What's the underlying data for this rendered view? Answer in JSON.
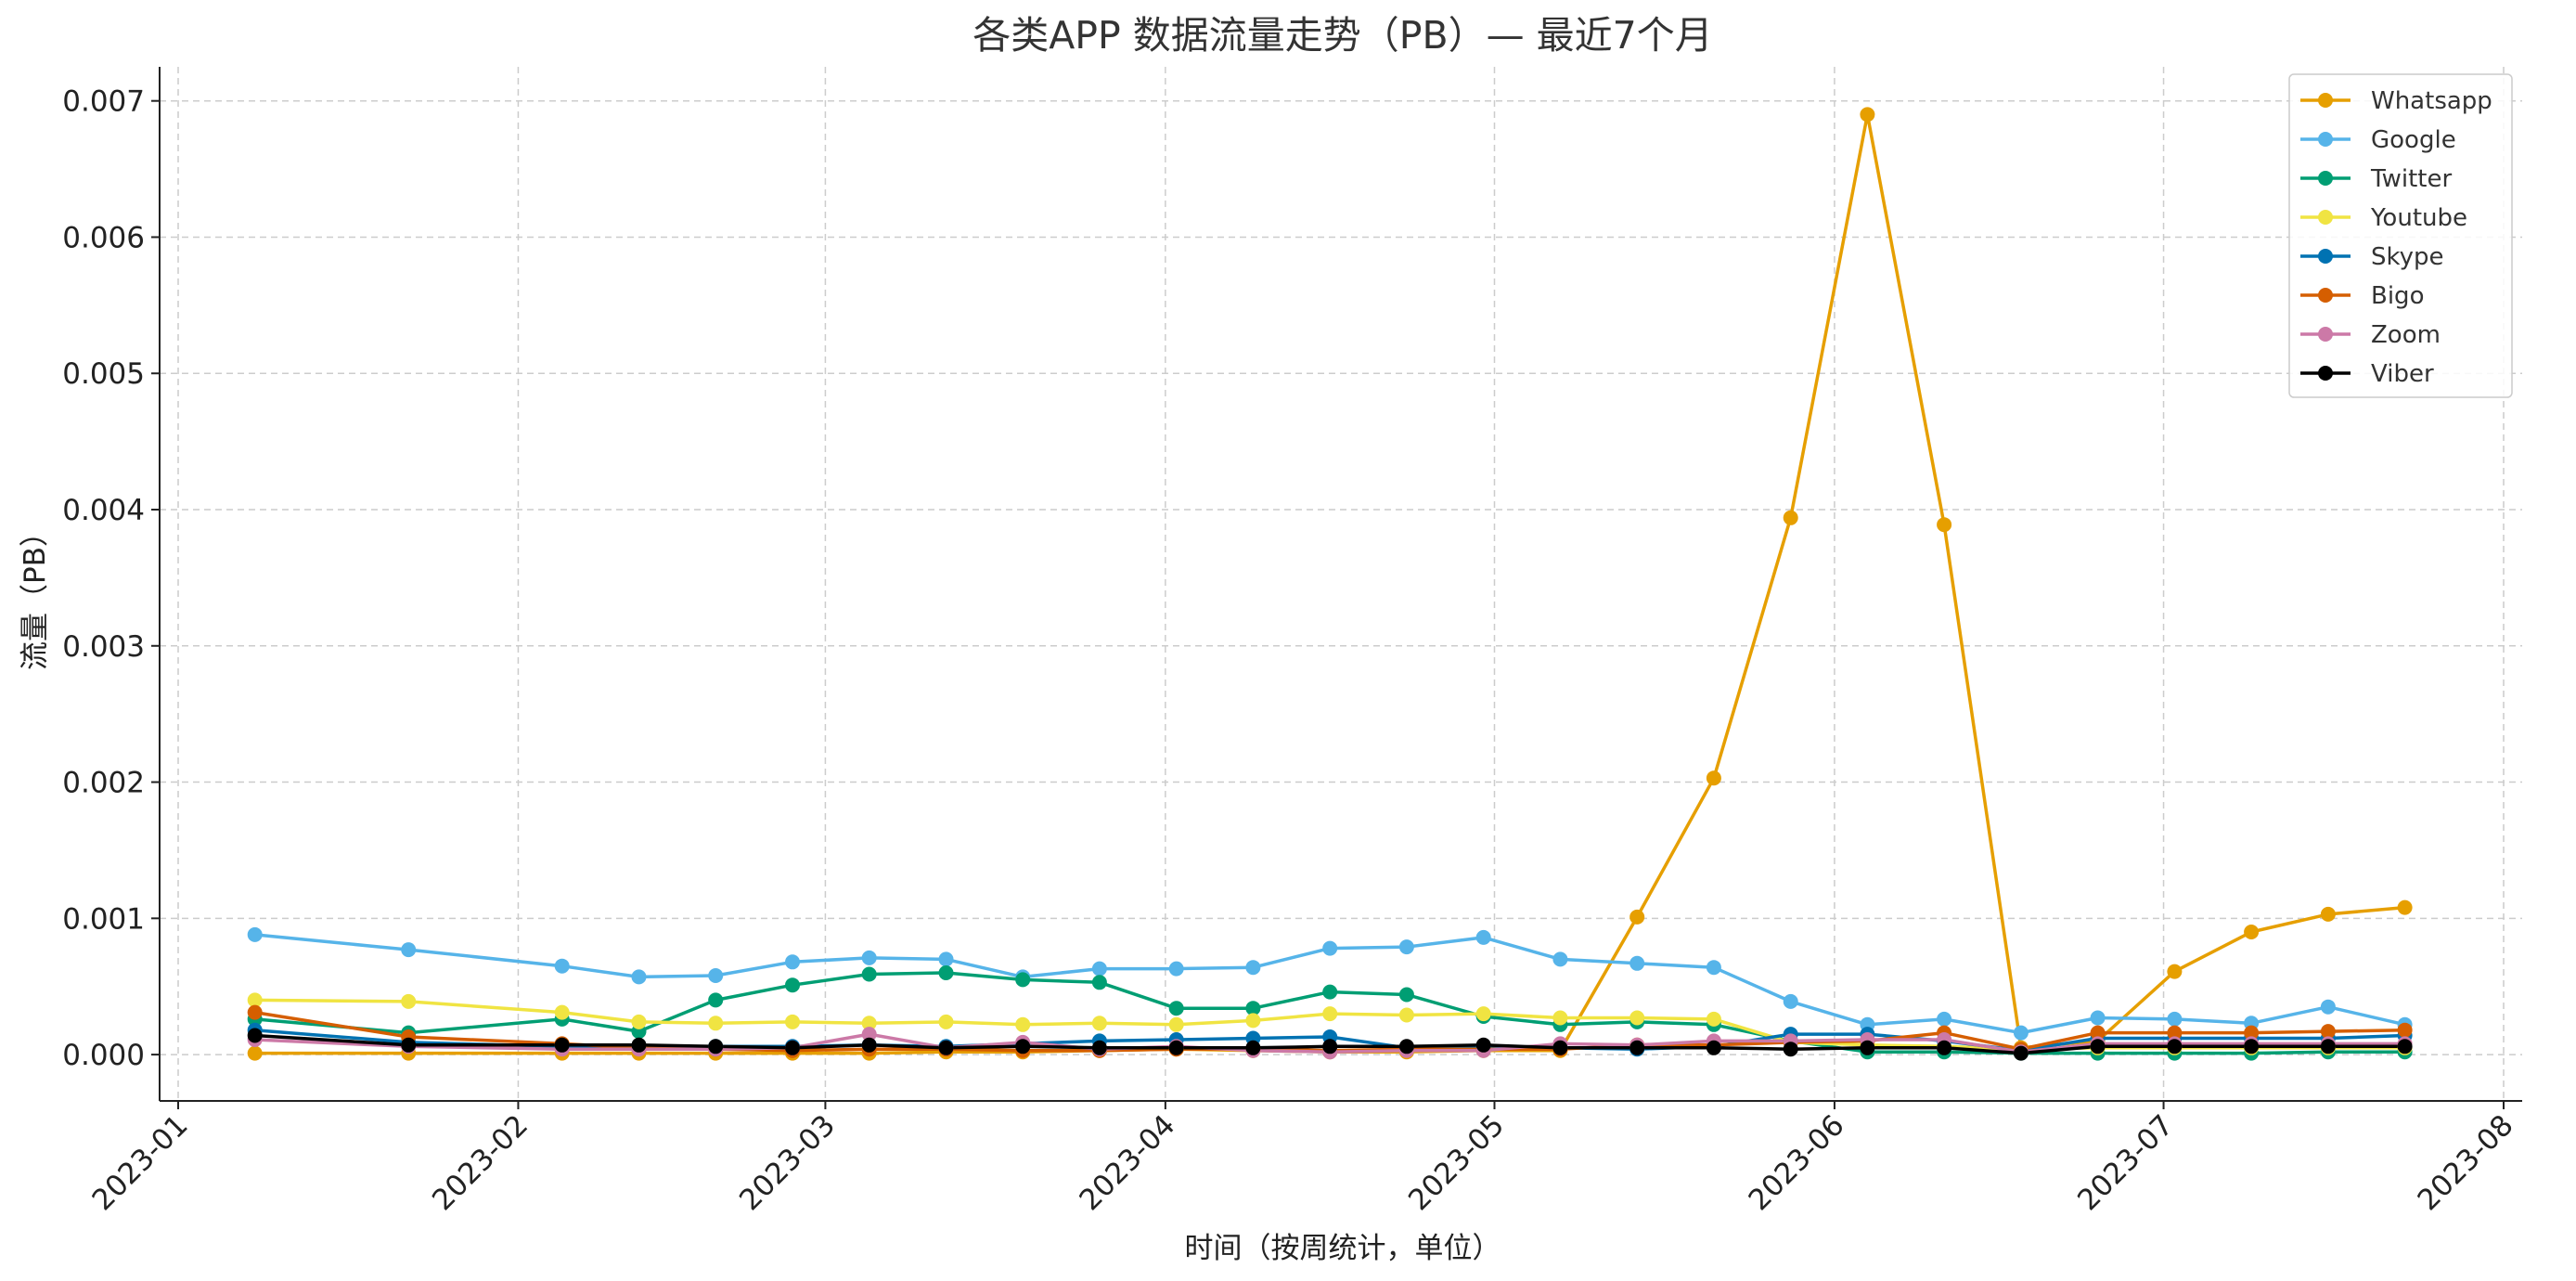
{
  "chart_data": {
    "type": "line",
    "title": "各类APP 数据流量走势（PB）— 最近7个月",
    "xlabel": "时间（按周统计，单位）",
    "ylabel": "流量（PB）",
    "xlim": [
      "2023-01-01",
      "2023-08-01"
    ],
    "ylim": [
      -0.00034,
      0.00725
    ],
    "x_ticks": [
      "2023-01",
      "2023-02",
      "2023-03",
      "2023-04",
      "2023-05",
      "2023-06",
      "2023-07",
      "2023-08"
    ],
    "y_ticks": [
      "0.000",
      "0.001",
      "0.002",
      "0.003",
      "0.004",
      "0.005",
      "0.006",
      "0.007"
    ],
    "grid": true,
    "legend_position": "top-right",
    "x": [
      "2023-01-08",
      "2023-01-22",
      "2023-02-05",
      "2023-02-12",
      "2023-02-19",
      "2023-02-26",
      "2023-03-05",
      "2023-03-12",
      "2023-03-19",
      "2023-03-26",
      "2023-04-02",
      "2023-04-09",
      "2023-04-16",
      "2023-04-23",
      "2023-04-30",
      "2023-05-07",
      "2023-05-14",
      "2023-05-21",
      "2023-05-28",
      "2023-06-04",
      "2023-06-11",
      "2023-06-18",
      "2023-06-25",
      "2023-07-02",
      "2023-07-09",
      "2023-07-16",
      "2023-07-23"
    ],
    "series": [
      {
        "name": "Whatsapp",
        "color": "#E69F00",
        "values": [
          1e-05,
          1e-05,
          1e-05,
          1e-05,
          1e-05,
          1e-05,
          1e-05,
          2e-05,
          2e-05,
          3e-05,
          4e-05,
          3e-05,
          2e-05,
          2e-05,
          3e-05,
          3e-05,
          0.00101,
          0.00203,
          0.00394,
          0.0069,
          0.00389,
          5e-05,
          0.0001,
          0.00061,
          0.0009,
          0.00103,
          0.00108
        ]
      },
      {
        "name": "Google",
        "color": "#56B4E9",
        "values": [
          0.00088,
          0.00077,
          0.00065,
          0.00057,
          0.00058,
          0.00068,
          0.00071,
          0.0007,
          0.00057,
          0.00063,
          0.00063,
          0.00064,
          0.00078,
          0.00079,
          0.00086,
          0.0007,
          0.00067,
          0.00064,
          0.00039,
          0.00022,
          0.00026,
          0.00016,
          0.00027,
          0.00026,
          0.00023,
          0.00035,
          0.00022
        ]
      },
      {
        "name": "Twitter",
        "color": "#009E73",
        "values": [
          0.00026,
          0.00016,
          0.00026,
          0.00017,
          0.0004,
          0.00051,
          0.00059,
          0.0006,
          0.00055,
          0.00053,
          0.00034,
          0.00034,
          0.00046,
          0.00044,
          0.00028,
          0.00022,
          0.00024,
          0.00022,
          0.0001,
          2e-05,
          2e-05,
          1e-05,
          1e-05,
          1e-05,
          1e-05,
          2e-05,
          2e-05
        ]
      },
      {
        "name": "Youtube",
        "color": "#F0E442",
        "values": [
          0.0004,
          0.00039,
          0.00031,
          0.00024,
          0.00023,
          0.00024,
          0.00023,
          0.00024,
          0.00022,
          0.00023,
          0.00022,
          0.00025,
          0.0003,
          0.00029,
          0.0003,
          0.00027,
          0.00027,
          0.00026,
          9e-05,
          7e-05,
          6e-05,
          4e-05,
          5e-05,
          5e-05,
          5e-05,
          5e-05,
          5e-05
        ]
      },
      {
        "name": "Skype",
        "color": "#0072B2",
        "values": [
          0.00018,
          9e-05,
          6e-05,
          6e-05,
          6e-05,
          6e-05,
          7e-05,
          6e-05,
          8e-05,
          0.0001,
          0.00011,
          0.00012,
          0.00013,
          5e-05,
          6e-05,
          5e-05,
          4e-05,
          6e-05,
          0.00015,
          0.00015,
          0.0001,
          3e-05,
          0.00012,
          0.00012,
          0.00012,
          0.00012,
          0.00014
        ]
      },
      {
        "name": "Bigo",
        "color": "#D55E00",
        "values": [
          0.00031,
          0.00013,
          8e-05,
          5e-05,
          4e-05,
          3e-05,
          4e-05,
          4e-05,
          3e-05,
          3e-05,
          4e-05,
          4e-05,
          3e-05,
          4e-05,
          4e-05,
          4e-05,
          7e-05,
          7e-05,
          9e-05,
          0.0001,
          0.00016,
          4e-05,
          0.00016,
          0.00016,
          0.00016,
          0.00017,
          0.00018
        ]
      },
      {
        "name": "Zoom",
        "color": "#CC79A7",
        "values": [
          0.00011,
          6e-05,
          4e-05,
          4e-05,
          4e-05,
          5e-05,
          0.00015,
          5e-05,
          9e-05,
          4e-05,
          6e-05,
          3e-05,
          2e-05,
          3e-05,
          3e-05,
          8e-05,
          7e-05,
          0.0001,
          0.0001,
          0.00011,
          0.00011,
          2e-05,
          8e-05,
          8e-05,
          8e-05,
          8e-05,
          8e-05
        ]
      },
      {
        "name": "Viber",
        "color": "#000000",
        "values": [
          0.00014,
          7e-05,
          7e-05,
          7e-05,
          6e-05,
          5e-05,
          7e-05,
          5e-05,
          6e-05,
          5e-05,
          5e-05,
          5e-05,
          6e-05,
          6e-05,
          7e-05,
          5e-05,
          5e-05,
          5e-05,
          4e-05,
          5e-05,
          5e-05,
          1e-05,
          6e-05,
          6e-05,
          6e-05,
          6e-05,
          6e-05
        ]
      }
    ]
  }
}
